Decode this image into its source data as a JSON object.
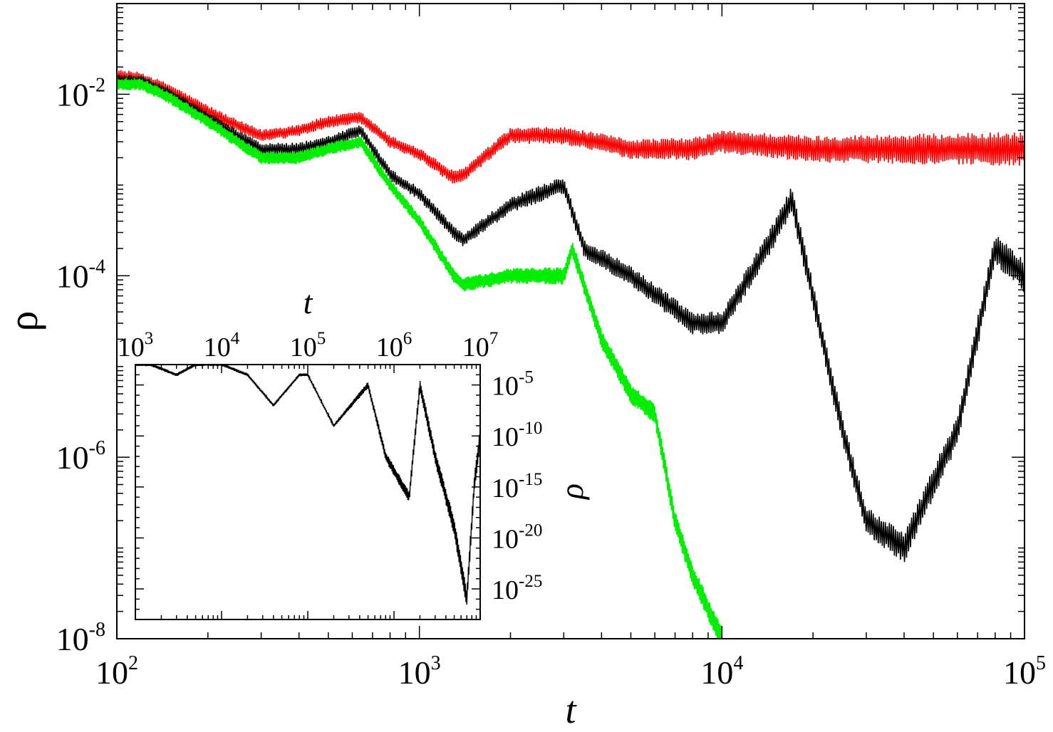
{
  "chart_data": [
    {
      "type": "line",
      "xlabel": "t",
      "ylabel": "ρ",
      "xscale": "log",
      "yscale": "log",
      "xlim": [
        100,
        100000
      ],
      "ylim": [
        1e-08,
        0.1
      ],
      "xticks": [
        {
          "base": "10",
          "exp": "2"
        },
        {
          "base": "10",
          "exp": "3"
        },
        {
          "base": "10",
          "exp": "4"
        },
        {
          "base": "10",
          "exp": "5"
        }
      ],
      "yticks": [
        {
          "base": "10",
          "exp": "-8"
        },
        {
          "base": "10",
          "exp": "-6"
        },
        {
          "base": "10",
          "exp": "-4"
        },
        {
          "base": "10",
          "exp": "-2"
        }
      ],
      "series": [
        {
          "color": "#ff0000",
          "x": [
            100,
            120,
            150,
            200,
            250,
            300,
            400,
            500,
            640,
            800,
            1000,
            1300,
            1400,
            2000,
            3000,
            5000,
            8000,
            10000,
            20000,
            50000,
            100000
          ],
          "y": [
            0.016,
            0.015,
            0.011,
            0.0065,
            0.0045,
            0.0035,
            0.004,
            0.005,
            0.0055,
            0.003,
            0.0022,
            0.0012,
            0.0013,
            0.0035,
            0.0035,
            0.0025,
            0.0025,
            0.003,
            0.0025,
            0.0025,
            0.0025
          ]
        },
        {
          "color": "#000000",
          "x": [
            100,
            120,
            150,
            200,
            250,
            300,
            400,
            500,
            640,
            800,
            1000,
            1300,
            1400,
            2000,
            3000,
            3500,
            5000,
            8000,
            10000,
            15000,
            17000,
            25000,
            30000,
            40000,
            60000,
            80000,
            100000
          ],
          "y": [
            0.014,
            0.014,
            0.01,
            0.0055,
            0.0035,
            0.0025,
            0.0025,
            0.003,
            0.004,
            0.0013,
            0.0008,
            0.0003,
            0.00025,
            0.0006,
            0.001,
            0.0002,
            0.0001,
            3e-05,
            3e-05,
            0.0003,
            0.0007,
            2e-06,
            2e-07,
            1e-07,
            2e-06,
            0.0002,
            0.0001
          ]
        },
        {
          "color": "#00ee00",
          "x": [
            100,
            120,
            150,
            200,
            250,
            300,
            400,
            500,
            640,
            800,
            1000,
            1300,
            1400,
            2000,
            3000,
            3200,
            4000,
            5000,
            6000,
            7000,
            8000,
            10000
          ],
          "y": [
            0.013,
            0.013,
            0.009,
            0.005,
            0.003,
            0.002,
            0.002,
            0.0025,
            0.003,
            0.001,
            0.0004,
            0.0001,
            8e-05,
            0.0001,
            0.0001,
            0.0002,
            2e-05,
            5e-06,
            3e-06,
            2e-07,
            5e-08,
            1e-08
          ]
        }
      ]
    },
    {
      "type": "line",
      "xlabel": "t",
      "ylabel": "ρ",
      "xscale": "log",
      "yscale": "log",
      "xlim": [
        1000,
        10000000
      ],
      "ylim": [
        1e-28,
        0.001
      ],
      "xticks": [
        {
          "base": "10",
          "exp": "3"
        },
        {
          "base": "10",
          "exp": "4"
        },
        {
          "base": "10",
          "exp": "5"
        },
        {
          "base": "10",
          "exp": "6"
        },
        {
          "base": "10",
          "exp": "7"
        }
      ],
      "yticks": [
        {
          "base": "10",
          "exp": "-5"
        },
        {
          "base": "10",
          "exp": "-10"
        },
        {
          "base": "10",
          "exp": "-15"
        },
        {
          "base": "10",
          "exp": "-20"
        },
        {
          "base": "10",
          "exp": "-25"
        }
      ],
      "series": [
        {
          "color": "#000000",
          "x": [
            1000,
            1500,
            3000,
            5000,
            10000,
            20000,
            40000,
            80000,
            100000,
            200000,
            500000,
            800000,
            1500000,
            2000000,
            3000000,
            5000000,
            7000000,
            8500000,
            10000000
          ],
          "y": [
            0.001,
            0.001,
            0.0001,
            0.001,
            0.001,
            0.0001,
            1e-07,
            0.0001,
            0.0001,
            1e-09,
            1e-05,
            1e-12,
            1e-16,
            1e-05,
            1e-12,
            1e-19,
            1e-26,
            1e-15,
            1e-10
          ]
        }
      ]
    }
  ]
}
